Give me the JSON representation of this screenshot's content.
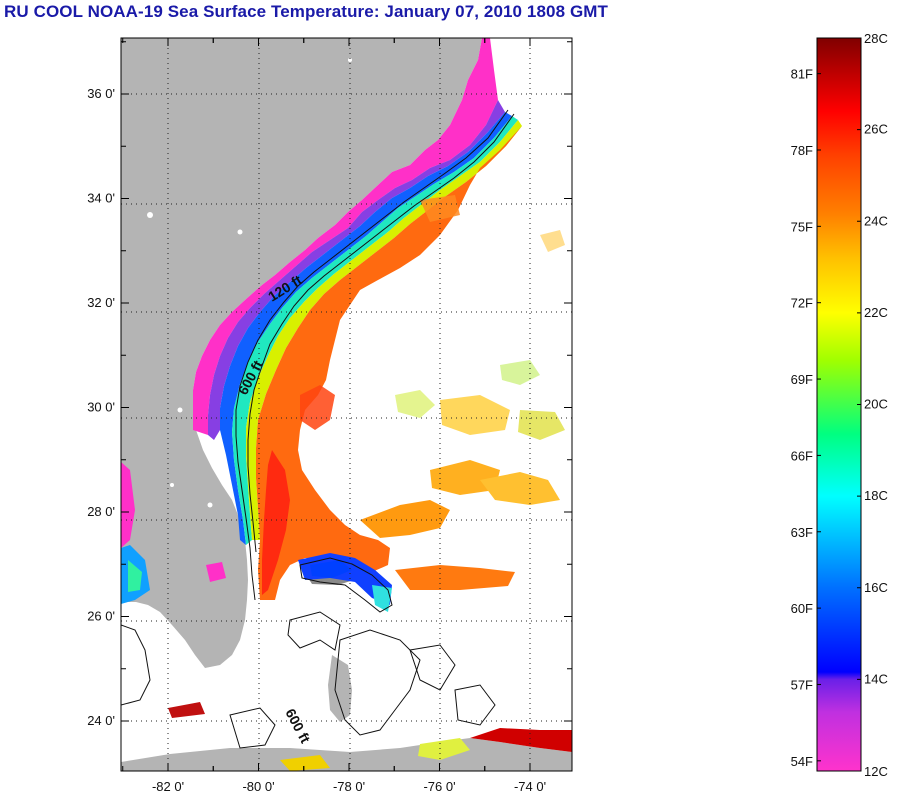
{
  "title": "RU COOL  NOAA-19  Sea Surface Temperature:  January 07, 2010 1808 GMT",
  "map": {
    "lon_range": [
      -83,
      -73
    ],
    "lat_range": [
      23,
      37
    ],
    "lat_ticks": [
      {
        "value": 36,
        "label": "36 0'"
      },
      {
        "value": 34,
        "label": "34 0'"
      },
      {
        "value": 32,
        "label": "32 0'"
      },
      {
        "value": 30,
        "label": "30 0'"
      },
      {
        "value": 28,
        "label": "28 0'"
      },
      {
        "value": 26,
        "label": "26 0'"
      },
      {
        "value": 24,
        "label": "24 0'"
      }
    ],
    "lon_ticks": [
      {
        "value": -82,
        "label": "-82 0'"
      },
      {
        "value": -80,
        "label": "-80 0'"
      },
      {
        "value": -78,
        "label": "-78 0'"
      },
      {
        "value": -76,
        "label": "-76 0'"
      },
      {
        "value": -74,
        "label": "-74 0'"
      }
    ],
    "grid": "dotted",
    "land_color": "#b4b4b4",
    "contour_labels": {
      "shelf": "120 ft",
      "slope": "600 ft",
      "bahamas": "600 ft"
    }
  },
  "colorbar": {
    "min_c": 12,
    "max_c": 28,
    "celsius_labels": [
      "28C",
      "26C",
      "24C",
      "22C",
      "20C",
      "18C",
      "16C",
      "14C",
      "12C"
    ],
    "fahrenheit_labels": [
      "81F",
      "78F",
      "75F",
      "72F",
      "69F",
      "66F",
      "63F",
      "60F",
      "57F",
      "54F"
    ],
    "colors": [
      "#ff33cc",
      "#8a28e0",
      "#0000ff",
      "#0080ff",
      "#00ffff",
      "#00ff80",
      "#a0ff00",
      "#ffff00",
      "#ffb000",
      "#ff7000",
      "#ff2000",
      "#e00000",
      "#800000"
    ]
  }
}
